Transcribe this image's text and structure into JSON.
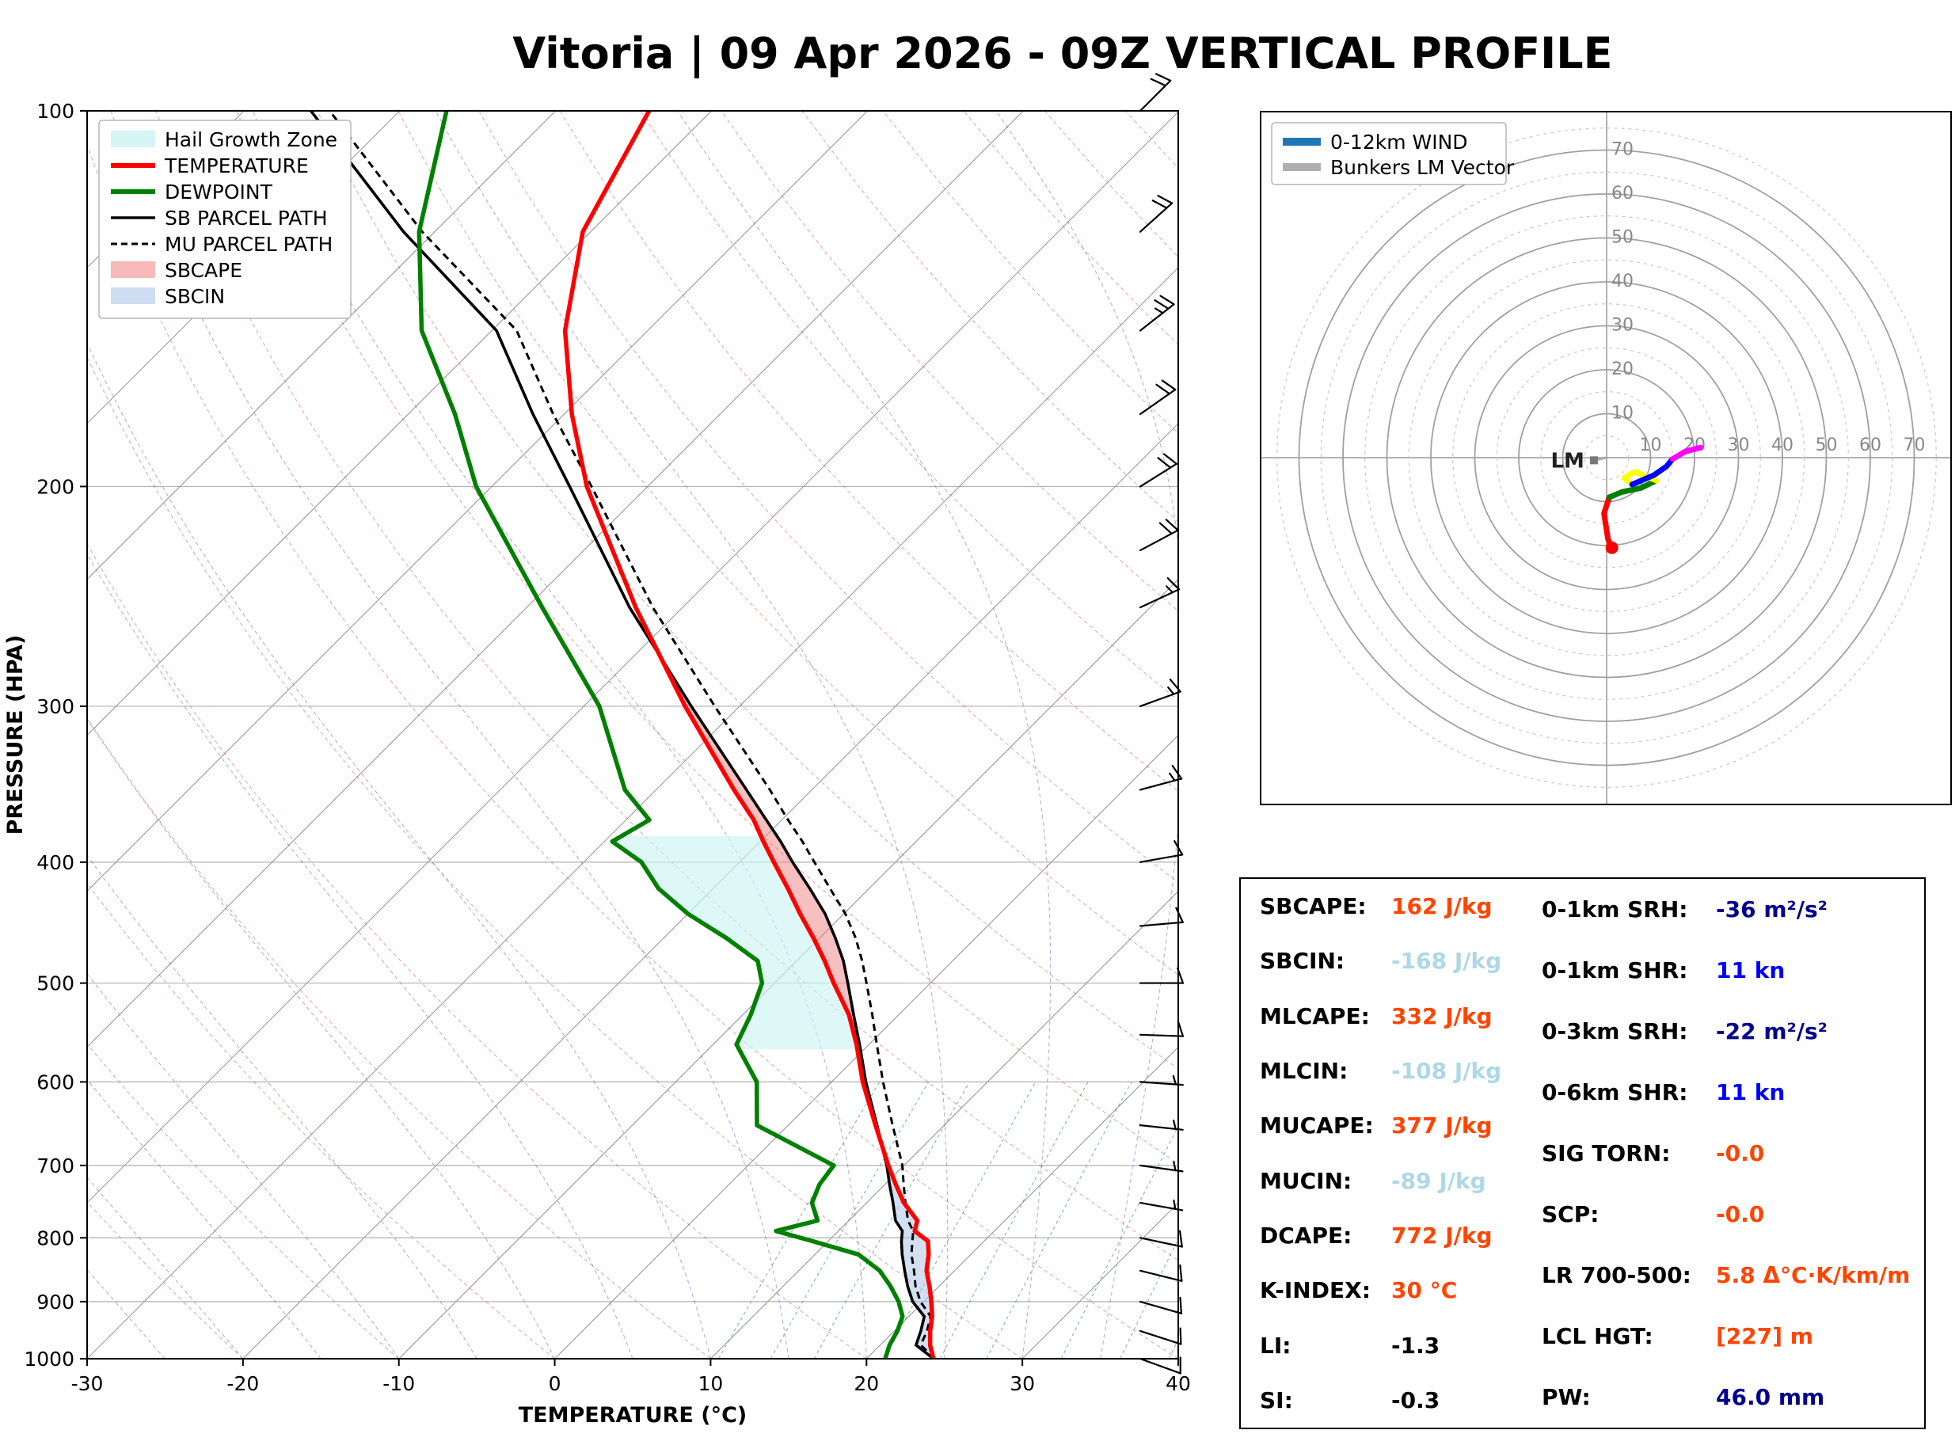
{
  "title": "Vitoria | 09 Apr 2026 - 09Z VERTICAL PROFILE",
  "chart_data": [
    {
      "type": "line",
      "name": "skewt-sounding",
      "xlabel": "TEMPERATURE (°C)",
      "ylabel": "PRESSURE (HPA)",
      "x_ticks": [
        -30,
        -20,
        -10,
        0,
        10,
        20,
        30,
        40
      ],
      "y_ticks": [
        100,
        200,
        300,
        400,
        500,
        600,
        700,
        800,
        900,
        1000
      ],
      "xlim": [
        -30,
        40
      ],
      "pressure_range": [
        100,
        1000
      ],
      "skew_deg": 45,
      "legend": [
        "Hail Growth Zone",
        "TEMPERATURE",
        "DEWPOINT",
        "SB PARCEL PATH",
        "MU PARCEL PATH",
        "SBCAPE",
        "SBCIN"
      ],
      "pressure": [
        1000,
        975,
        950,
        925,
        900,
        875,
        850,
        825,
        805,
        790,
        775,
        750,
        725,
        700,
        650,
        600,
        560,
        530,
        500,
        480,
        460,
        440,
        420,
        400,
        385,
        370,
        350,
        300,
        250,
        200,
        175,
        150,
        125,
        100
      ],
      "temperature": [
        24.3,
        23.2,
        22.3,
        21.5,
        20.5,
        19.4,
        18.2,
        17.3,
        16.4,
        14.9,
        14.4,
        12.4,
        10.7,
        9.0,
        5.6,
        2.0,
        -0.8,
        -3.2,
        -6.2,
        -8.2,
        -10.4,
        -12.8,
        -15.2,
        -17.8,
        -19.8,
        -21.8,
        -25.0,
        -33.5,
        -43.0,
        -53.9,
        -59.5,
        -65.3,
        -70.5,
        -74.0
      ],
      "dewpoint": [
        21.2,
        20.6,
        20.2,
        19.6,
        18.4,
        16.9,
        15.2,
        12.8,
        9.0,
        6.0,
        8.0,
        6.5,
        5.8,
        5.5,
        -2.0,
        -4.8,
        -8.5,
        -9.5,
        -10.8,
        -12.5,
        -16.0,
        -20.0,
        -23.5,
        -26.3,
        -29.5,
        -28.5,
        -32.0,
        -39.0,
        -49.0,
        -61.0,
        -67.0,
        -74.5,
        -81.0,
        -87.0
      ],
      "sb_parcel": [
        24.3,
        22.3,
        21.7,
        21.0,
        19.3,
        18.0,
        16.8,
        15.6,
        14.7,
        14.1,
        13.0,
        11.7,
        10.3,
        8.9,
        5.7,
        2.2,
        -0.6,
        -2.9,
        -5.3,
        -7.0,
        -9.0,
        -11.2,
        -13.8,
        -16.6,
        -18.7,
        -21.0,
        -24.2,
        -33.1,
        -43.4,
        -55.0,
        -62.0,
        -69.7,
        -82.0,
        -95.7
      ],
      "mu_parcel": [
        24.4,
        22.6,
        22.1,
        21.4,
        19.8,
        18.5,
        17.4,
        16.2,
        15.4,
        14.8,
        13.8,
        12.5,
        11.2,
        9.9,
        6.7,
        3.3,
        0.5,
        -1.7,
        -4.1,
        -5.8,
        -7.7,
        -9.9,
        -12.5,
        -15.2,
        -17.3,
        -19.6,
        -22.7,
        -31.6,
        -41.9,
        -53.6,
        -60.7,
        -68.4,
        -80.8,
        -94.5
      ],
      "hail_zone_pressure": [
        565,
        378
      ],
      "mixing_ratio_lines_gkg": [
        8,
        10,
        12,
        16,
        20,
        24,
        32,
        40,
        48
      ],
      "wind_barbs": {
        "pressure": [
          1000,
          950,
          900,
          850,
          800,
          750,
          700,
          650,
          600,
          550,
          500,
          450,
          400,
          350,
          300,
          250,
          225,
          200,
          175,
          150,
          125,
          100
        ],
        "speed_kn": [
          8,
          9,
          10,
          9,
          8,
          7,
          6,
          6,
          7,
          8,
          10,
          11,
          12,
          13,
          15,
          17,
          18,
          20,
          22,
          25,
          22,
          18
        ],
        "direction_deg": [
          110,
          108,
          106,
          104,
          102,
          100,
          98,
          96,
          94,
          92,
          90,
          85,
          80,
          75,
          70,
          65,
          62,
          58,
          55,
          52,
          48,
          45
        ]
      }
    },
    {
      "type": "hodograph",
      "legend": [
        "0-12km WIND",
        "Bunkers LM Vector"
      ],
      "legend_colors": [
        "#1f77b4",
        "#b0b0b0"
      ],
      "ring_interval_kn": 10,
      "rings_solid": [
        10,
        20,
        30,
        40,
        50,
        60,
        70
      ],
      "rings_dashed": [
        5,
        15,
        25,
        35,
        45,
        55,
        65,
        75
      ],
      "ring_labels": [
        10,
        20,
        30,
        40,
        50,
        60,
        70
      ],
      "trace": [
        {
          "layer": "0-1km",
          "color": "#ff0000",
          "points_uv_kn": [
            [
              1.2,
              -20.5
            ],
            [
              0.3,
              -18.5
            ],
            [
              -0.6,
              -12.7
            ],
            [
              0.6,
              -9.0
            ]
          ]
        },
        {
          "layer": "1-3km",
          "color": "#008000",
          "points_uv_kn": [
            [
              0.6,
              -9.0
            ],
            [
              3.5,
              -7.8
            ],
            [
              7.8,
              -6.9
            ],
            [
              11.3,
              -5.2
            ]
          ]
        },
        {
          "layer": "3-6km",
          "color": "#ffff00",
          "points_uv_kn": [
            [
              11.3,
              -5.2
            ],
            [
              6.4,
              -3.2
            ],
            [
              4.0,
              -4.6
            ],
            [
              5.8,
              -6.1
            ]
          ]
        },
        {
          "layer": "6-9km",
          "color": "#0000ff",
          "points_uv_kn": [
            [
              5.8,
              -6.1
            ],
            [
              10.7,
              -4.0
            ],
            [
              13.6,
              -2.0
            ],
            [
              15.0,
              -0.3
            ]
          ]
        },
        {
          "layer": "9-12km",
          "color": "#ff00ff",
          "points_uv_kn": [
            [
              15.0,
              -0.3
            ],
            [
              17.9,
              1.4
            ],
            [
              21.4,
              2.3
            ]
          ]
        }
      ],
      "lm_marker": {
        "label": "LM",
        "u_kn": -2.9,
        "v_kn": -0.6
      }
    },
    {
      "type": "table",
      "left_rows": [
        {
          "label": "SBCAPE:",
          "value": "162 J/kg",
          "color": "#ff4500"
        },
        {
          "label": "SBCIN:",
          "value": "-168 J/kg",
          "color": "#add8e6"
        },
        {
          "label": "MLCAPE:",
          "value": "332 J/kg",
          "color": "#ff4500"
        },
        {
          "label": "MLCIN:",
          "value": "-108 J/kg",
          "color": "#add8e6"
        },
        {
          "label": "MUCAPE:",
          "value": "377 J/kg",
          "color": "#ff4500"
        },
        {
          "label": "MUCIN:",
          "value": "-89 J/kg",
          "color": "#add8e6"
        },
        {
          "label": "DCAPE:",
          "value": "772 J/kg",
          "color": "#ff4500"
        },
        {
          "label": "K-INDEX:",
          "value": "30 °C",
          "color": "#ff4500"
        },
        {
          "label": "LI:",
          "value": "-1.3",
          "color": "#000000"
        },
        {
          "label": "SI:",
          "value": "-0.3",
          "color": "#000000"
        }
      ],
      "right_rows": [
        {
          "label": "0-1km SRH:",
          "value": "-36 m²/s²",
          "color": "#00008b"
        },
        {
          "label": "0-1km SHR:",
          "value": "11 kn",
          "color": "#0000ff"
        },
        {
          "label": "0-3km SRH:",
          "value": "-22 m²/s²",
          "color": "#00008b"
        },
        {
          "label": "0-6km SHR:",
          "value": "11 kn",
          "color": "#0000ff"
        },
        {
          "label": "SIG TORN:",
          "value": "-0.0",
          "color": "#ff4500"
        },
        {
          "label": "SCP:",
          "value": "-0.0",
          "color": "#ff4500"
        },
        {
          "label": "LR 700-500:",
          "value": "5.8 Δ°C·K/km/m",
          "color": "#ff4500"
        },
        {
          "label": "LCL HGT:",
          "value": "[227] m",
          "color": "#ff4500"
        },
        {
          "label": "PW:",
          "value": "46.0 mm",
          "color": "#00008b"
        }
      ]
    }
  ],
  "colors": {
    "temperature": "#ff0000",
    "dewpoint": "#008000",
    "parcel": "#000000",
    "sbcape_fill": "#f08080",
    "sbcin_fill": "#aec6e8",
    "hail_fill": "#ccf2f2",
    "isotherm": "#9a9a9a",
    "dry_adiabat": "#d9534f",
    "moist_adiabat": "#6060d0",
    "mixing_ratio": "#2e8b57",
    "grid": "#b0b0b0",
    "axis": "#000000",
    "ring": "#a0a0a0",
    "ring_label": "#888888"
  }
}
